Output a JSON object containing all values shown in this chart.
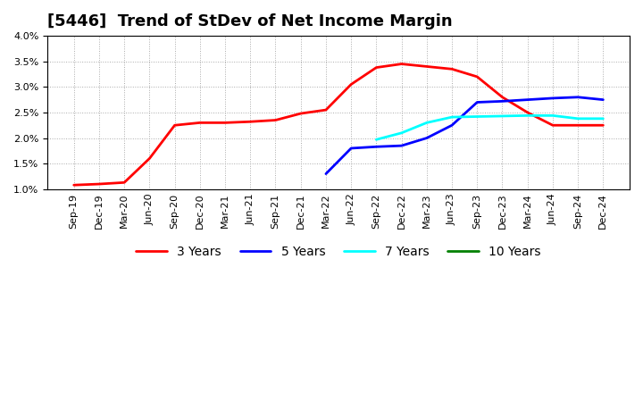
{
  "title": "[5446]  Trend of StDev of Net Income Margin",
  "x_labels": [
    "Sep-19",
    "Dec-19",
    "Mar-20",
    "Jun-20",
    "Sep-20",
    "Dec-20",
    "Mar-21",
    "Jun-21",
    "Sep-21",
    "Dec-21",
    "Mar-22",
    "Jun-22",
    "Sep-22",
    "Dec-22",
    "Mar-23",
    "Jun-23",
    "Sep-23",
    "Dec-23",
    "Mar-24",
    "Jun-24",
    "Sep-24",
    "Dec-24"
  ],
  "series": {
    "3 Years": {
      "color": "#FF0000",
      "data": [
        1.08,
        1.1,
        1.13,
        1.6,
        2.25,
        2.3,
        2.3,
        2.32,
        2.35,
        2.48,
        2.55,
        3.05,
        3.38,
        3.45,
        3.4,
        3.35,
        3.2,
        2.8,
        2.5,
        2.25,
        2.25,
        2.25
      ]
    },
    "5 Years": {
      "color": "#0000FF",
      "data": [
        null,
        null,
        null,
        null,
        null,
        null,
        null,
        null,
        null,
        null,
        1.3,
        1.8,
        1.83,
        1.85,
        2.0,
        2.25,
        2.7,
        2.72,
        2.75,
        2.78,
        2.8,
        2.75
      ]
    },
    "7 Years": {
      "color": "#00FFFF",
      "data": [
        null,
        null,
        null,
        null,
        null,
        null,
        null,
        null,
        null,
        null,
        null,
        null,
        1.97,
        2.1,
        2.3,
        2.41,
        2.42,
        2.43,
        2.44,
        2.44,
        2.38,
        2.38
      ]
    },
    "10 Years": {
      "color": "#008000",
      "data": [
        null,
        null,
        null,
        null,
        null,
        null,
        null,
        null,
        null,
        null,
        null,
        null,
        null,
        null,
        null,
        null,
        null,
        null,
        null,
        null,
        null,
        null
      ]
    }
  },
  "ylim": [
    1.0,
    4.0
  ],
  "yticks": [
    1.0,
    1.5,
    2.0,
    2.5,
    3.0,
    3.5,
    4.0
  ],
  "background_color": "#FFFFFF",
  "grid_color": "#AAAAAA",
  "title_fontsize": 13,
  "legend_fontsize": 10,
  "tick_fontsize": 8
}
